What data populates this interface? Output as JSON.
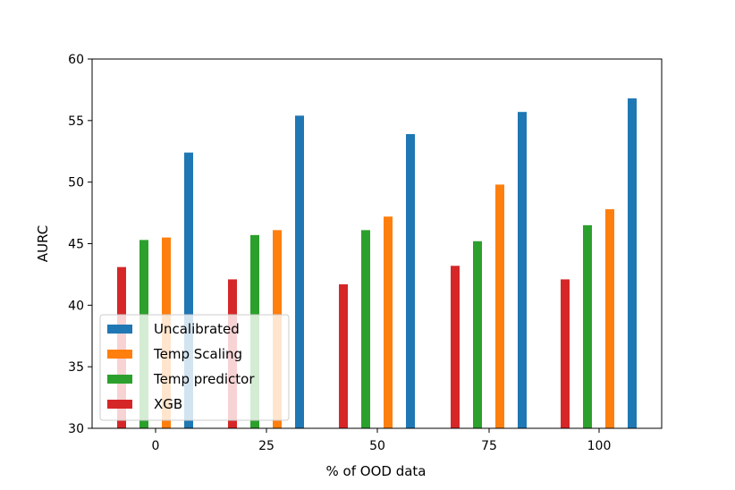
{
  "chart_data": {
    "type": "bar",
    "categories": [
      "0",
      "25",
      "50",
      "75",
      "100"
    ],
    "xlabel": "% of OOD data",
    "ylabel": "AURC",
    "ylim": [
      30,
      60
    ],
    "yticks": [
      "30",
      "35",
      "40",
      "45",
      "50",
      "55",
      "60"
    ],
    "grid": false,
    "legend_position": "lower-left",
    "series": [
      {
        "name": "XGB",
        "color": "#d62728",
        "values": [
          43.1,
          42.1,
          41.7,
          43.2,
          42.1
        ]
      },
      {
        "name": "Temp predictor",
        "color": "#2ca02c",
        "values": [
          45.3,
          45.7,
          46.1,
          45.2,
          46.5
        ]
      },
      {
        "name": "Temp Scaling",
        "color": "#ff7f0e",
        "values": [
          45.5,
          46.1,
          47.2,
          49.8,
          47.8
        ]
      },
      {
        "name": "Uncalibrated",
        "color": "#1f77b4",
        "values": [
          52.4,
          55.4,
          53.9,
          55.7,
          56.8
        ]
      }
    ],
    "legend_order": [
      "Uncalibrated",
      "Temp Scaling",
      "Temp predictor",
      "XGB"
    ]
  }
}
